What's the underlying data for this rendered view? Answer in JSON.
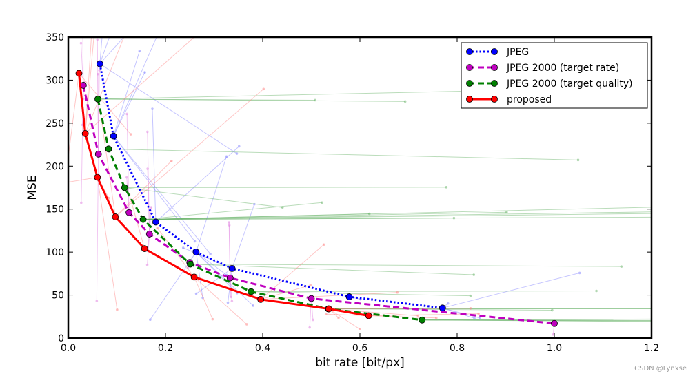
{
  "watermark": "CSDN @Lynxse",
  "chart_data": {
    "type": "line",
    "title": "",
    "xlabel": "bit rate [bit/px]",
    "ylabel": "MSE",
    "xlim": [
      0.0,
      1.2
    ],
    "ylim": [
      0,
      350
    ],
    "xticks": [
      0.0,
      0.2,
      0.4,
      0.6,
      0.8,
      1.0,
      1.2
    ],
    "xtick_labels": [
      "0.0",
      "0.2",
      "0.4",
      "0.6",
      "0.8",
      "1.0",
      "1.2"
    ],
    "yticks": [
      0,
      50,
      100,
      150,
      200,
      250,
      300,
      350
    ],
    "ytick_labels": [
      "0",
      "50",
      "100",
      "150",
      "200",
      "250",
      "300",
      "350"
    ],
    "grid": false,
    "legend_position": "top-right",
    "series": [
      {
        "name": "JPEG",
        "color": "#0000ff",
        "style": "dotted",
        "x": [
          0.065,
          0.093,
          0.18,
          0.263,
          0.337,
          0.578,
          0.77
        ],
        "y": [
          319,
          235,
          135,
          100,
          81,
          48,
          35
        ]
      },
      {
        "name": "JPEG 2000 (target rate)",
        "color": "#bf00bf",
        "style": "dashed",
        "x": [
          0.031,
          0.062,
          0.125,
          0.167,
          0.25,
          0.333,
          0.5,
          1.0
        ],
        "y": [
          294,
          214,
          146,
          121,
          88,
          70,
          46,
          17
        ]
      },
      {
        "name": "JPEG 2000 (target quality)",
        "color": "#008000",
        "style": "dashed",
        "x": [
          0.061,
          0.083,
          0.116,
          0.154,
          0.251,
          0.376,
          0.535,
          0.728
        ],
        "y": [
          278,
          220,
          175,
          138,
          86,
          54,
          34,
          21
        ]
      },
      {
        "name": "proposed",
        "color": "#ff0000",
        "style": "solid",
        "x": [
          0.022,
          0.035,
          0.06,
          0.097,
          0.157,
          0.259,
          0.396,
          0.536,
          0.618
        ],
        "y": [
          308,
          238,
          187,
          141,
          104,
          71,
          45,
          34,
          26
        ]
      }
    ]
  }
}
